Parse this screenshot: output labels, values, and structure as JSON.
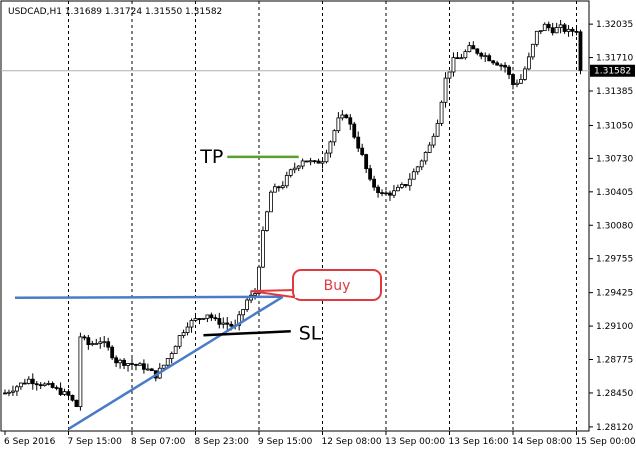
{
  "chart_data": {
    "type": "candlestick",
    "title": "USDCAD,H1  1.31689 1.31724 1.31550 1.31582",
    "symbol": "USDCAD",
    "timeframe": "H1",
    "ohlc_header": {
      "open": 1.31689,
      "high": 1.31724,
      "low": 1.3155,
      "close": 1.31582
    },
    "current_price": 1.31582,
    "current_price_label": "1.31582",
    "ylim": [
      1.2808,
      1.3226
    ],
    "y_ticks": [
      {
        "value": 1.32035,
        "label": "1.32035"
      },
      {
        "value": 1.3171,
        "label": "1.31710"
      },
      {
        "value": 1.31385,
        "label": "1.31385"
      },
      {
        "value": 1.3105,
        "label": "1.31050"
      },
      {
        "value": 1.3073,
        "label": "1.30730"
      },
      {
        "value": 1.30405,
        "label": "1.30405"
      },
      {
        "value": 1.3008,
        "label": "1.30080"
      },
      {
        "value": 1.29755,
        "label": "1.29755"
      },
      {
        "value": 1.29425,
        "label": "1.29425"
      },
      {
        "value": 1.291,
        "label": "1.29100"
      },
      {
        "value": 1.28775,
        "label": "1.28775"
      },
      {
        "value": 1.2845,
        "label": "1.28450"
      },
      {
        "value": 1.2812,
        "label": "1.28120"
      }
    ],
    "x_ticks": [
      "6 Sep 2016",
      "7 Sep 15:00",
      "8 Sep 07:00",
      "8 Sep 23:00",
      "9 Sep 15:00",
      "12 Sep 08:00",
      "13 Sep 00:00",
      "13 Sep 16:00",
      "14 Sep 08:00",
      "15 Sep 00:00"
    ],
    "bars_per_x_tick": 16,
    "grid": "vertical dashed",
    "close_path": [
      [
        0,
        1.2845
      ],
      [
        6,
        1.2858
      ],
      [
        12,
        1.285
      ],
      [
        16,
        1.2842
      ],
      [
        18,
        1.2832
      ],
      [
        19,
        1.29
      ],
      [
        21,
        1.2892
      ],
      [
        24,
        1.2896
      ],
      [
        26,
        1.2888
      ],
      [
        28,
        1.2876
      ],
      [
        31,
        1.2874
      ],
      [
        35,
        1.287
      ],
      [
        38,
        1.2862
      ],
      [
        40,
        1.2872
      ],
      [
        42,
        1.2885
      ],
      [
        44,
        1.29
      ],
      [
        46,
        1.2912
      ],
      [
        49,
        1.2918
      ],
      [
        51,
        1.2922
      ],
      [
        53,
        1.2915
      ],
      [
        56,
        1.2912
      ],
      [
        58,
        1.2909
      ],
      [
        59,
        1.2918
      ],
      [
        61,
        1.2935
      ],
      [
        63,
        1.2942
      ],
      [
        64,
        1.297
      ],
      [
        65,
        1.3
      ],
      [
        67,
        1.304
      ],
      [
        70,
        1.3048
      ],
      [
        72,
        1.306
      ],
      [
        75,
        1.3072
      ],
      [
        78,
        1.3068
      ],
      [
        80,
        1.3072
      ],
      [
        82,
        1.309
      ],
      [
        84,
        1.311
      ],
      [
        86,
        1.3115
      ],
      [
        88,
        1.3095
      ],
      [
        90,
        1.3075
      ],
      [
        92,
        1.305
      ],
      [
        95,
        1.3038
      ],
      [
        98,
        1.304
      ],
      [
        101,
        1.3048
      ],
      [
        104,
        1.3065
      ],
      [
        107,
        1.3085
      ],
      [
        109,
        1.311
      ],
      [
        111,
        1.315
      ],
      [
        113,
        1.3168
      ],
      [
        115,
        1.3172
      ],
      [
        117,
        1.318
      ],
      [
        120,
        1.3175
      ],
      [
        123,
        1.3168
      ],
      [
        126,
        1.3162
      ],
      [
        128,
        1.3145
      ],
      [
        130,
        1.315
      ],
      [
        132,
        1.317
      ],
      [
        134,
        1.3195
      ],
      [
        136,
        1.3202
      ],
      [
        138,
        1.3198
      ],
      [
        140,
        1.32
      ],
      [
        142,
        1.3196
      ],
      [
        144,
        1.3198
      ],
      [
        145,
        1.3158
      ]
    ],
    "annotations": [
      {
        "type": "text",
        "text": "TP"
      },
      {
        "type": "text",
        "text": "SL"
      },
      {
        "type": "callout",
        "text": "Buy"
      },
      {
        "type": "hline",
        "label": "TP",
        "from_bar": 56,
        "to_bar": 74,
        "value": 1.30745,
        "color": "#5a9e2f"
      },
      {
        "type": "hline",
        "label": "SL",
        "from_bar": 50,
        "to_bar": 72,
        "value": 1.2903,
        "color": "#000000"
      },
      {
        "type": "trendline",
        "name": "resistance",
        "points": [
          [
            0,
            1.29375
          ],
          [
            70,
            1.29385
          ]
        ],
        "color": "#4a7bc8"
      },
      {
        "type": "trendline",
        "name": "support",
        "points": [
          [
            16,
            1.281
          ],
          [
            70,
            1.29385
          ]
        ],
        "color": "#4a7bc8"
      }
    ],
    "colors": {
      "candle": "#000000",
      "background": "#ffffff",
      "tp": "#5a9e2f",
      "trend": "#4a7bc8",
      "buy": "#e0393e"
    }
  }
}
